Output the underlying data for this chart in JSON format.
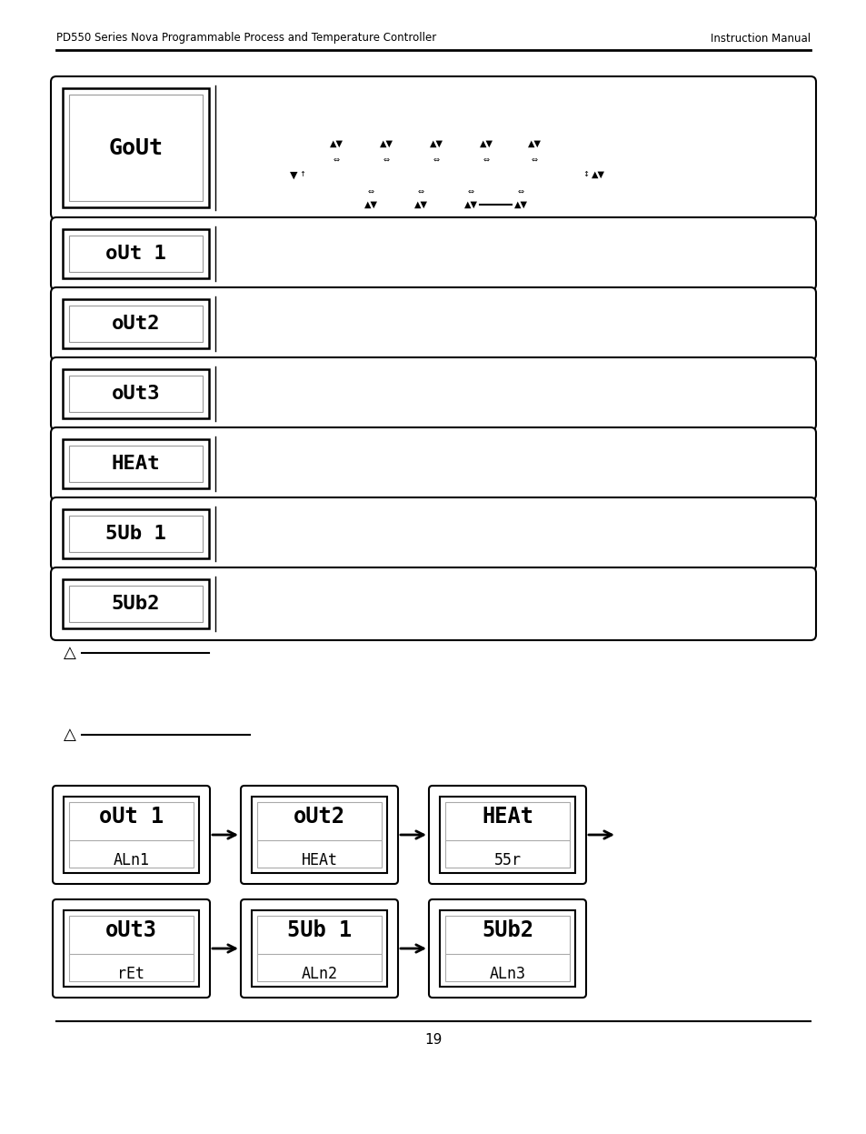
{
  "header_left": "PD550 Series Nova Programmable Process and Temperature Controller",
  "header_right": "Instruction Manual",
  "page_number": "19",
  "row_labels": [
    "GoUt",
    "oUt 1",
    "oUt2",
    "oUt3",
    "HEAt",
    "5Ub 1",
    "5Ub2"
  ],
  "flow_row1": [
    {
      "top": "oUt 1",
      "bottom": "ALn1"
    },
    {
      "top": "oUt2",
      "bottom": "HEAt"
    },
    {
      "top": "HEAt",
      "bottom": "55r"
    }
  ],
  "flow_row2": [
    {
      "top": "oUt3",
      "bottom": "rEt"
    },
    {
      "top": "5Ub 1",
      "bottom": "ALn2"
    },
    {
      "top": "5Ub2",
      "bottom": "ALn3"
    }
  ],
  "bg": "#ffffff"
}
